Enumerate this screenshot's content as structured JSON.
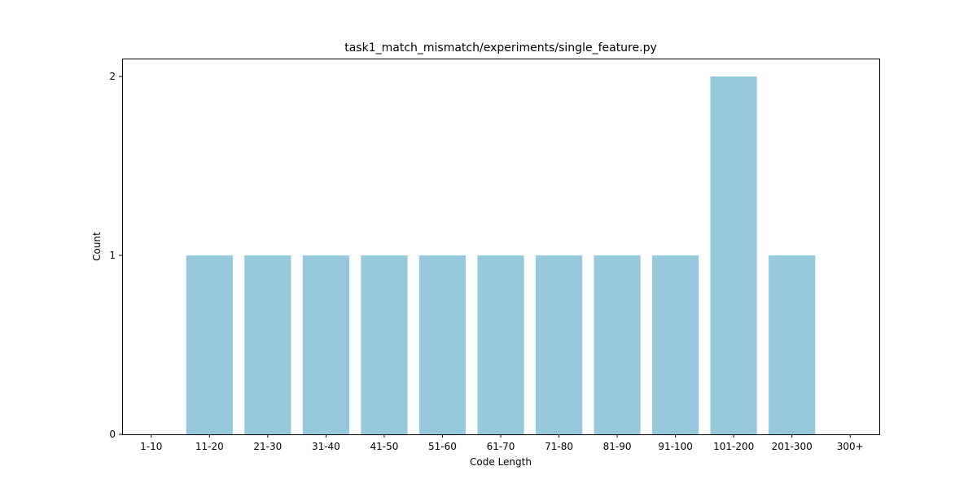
{
  "chart_data": {
    "type": "bar",
    "title": "task1_match_mismatch/experiments/single_feature.py",
    "xlabel": "Code Length",
    "ylabel": "Count",
    "categories": [
      "1-10",
      "11-20",
      "21-30",
      "31-40",
      "41-50",
      "51-60",
      "61-70",
      "71-80",
      "81-90",
      "91-100",
      "101-200",
      "201-300",
      "300+"
    ],
    "values": [
      0,
      1,
      1,
      1,
      1,
      1,
      1,
      1,
      1,
      1,
      2,
      1,
      0
    ],
    "ylim": [
      0,
      2.1
    ],
    "yticks": [
      0,
      1,
      2
    ],
    "grid": false,
    "bar_color": "#96c9dc"
  }
}
